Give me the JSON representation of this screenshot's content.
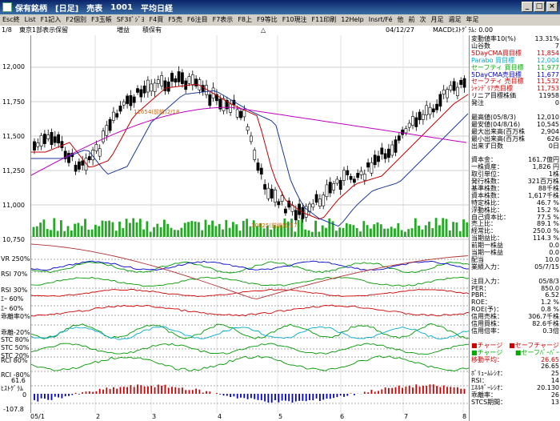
{
  "window": {
    "title_parts": [
      "保有銘柄",
      "[日足]",
      "売表",
      "1001",
      "平均日経"
    ]
  },
  "menu": [
    "Esc終",
    "List",
    "F1記入",
    "F2個別",
    "F3玉帳",
    "SF3ﾎﾟｼﾞﾖ",
    "F4買",
    "F5売",
    "F6注目",
    "F7表示",
    "F8上",
    "F9等比",
    "F10現注",
    "F11印刷",
    "12Help",
    "Insrt/Fé",
    "他",
    "前",
    "次",
    "月足",
    "週足",
    "年足"
  ],
  "info": {
    "page": "1/8",
    "market": "東京1部表示保留",
    "flag1": "増益",
    "flag2": "積保有",
    "marker": "△",
    "date": "04/12/27",
    "macd_label": "MACDﾋｽﾄｸﾞﾗﾑ: 0.00"
  },
  "price_axis": [
    "12,000",
    "11,750",
    "11,500",
    "11,250",
    "11,000",
    "10,750"
  ],
  "indicator_labels": [
    "VR 250%",
    "RSI 70%",
    "RSI 30%",
    "ｴｰ 60%",
    "ｴｰ 60%",
    "乖離率0%",
    "乖離-20%",
    "STC 80%",
    "STC 50%",
    "STC 20%",
    "RCI 80%",
    "RCI -80%",
    "ﾋｽﾄｸﾞﾗﾑ"
  ],
  "hist_axis": [
    "61.6",
    "0",
    "-107.8"
  ],
  "date_axis": [
    "05/1",
    "2",
    "3",
    "4",
    "5",
    "6",
    "7",
    "8"
  ],
  "annotations": {
    "cross1": "11654(前線)2/18",
    "cross2": "10825(前線)5/17"
  },
  "panel": [
    {
      "k": "変動値率10(%)",
      "v": "13.31%",
      "c": "#000000"
    },
    {
      "k": "山谷数",
      "v": "7",
      "c": "#000000"
    },
    {
      "k": "5DayCMA買目標",
      "v": "11,854",
      "c": "#cc0000"
    },
    {
      "k": "Parabo 買目標",
      "v": "12,004",
      "c": "#00aacc"
    },
    {
      "k": "セーフティ 買目標",
      "v": "11,977",
      "c": "#00aa00"
    },
    {
      "k": "5DayCMA売目標",
      "v": "11,677",
      "c": "#0000cc"
    },
    {
      "k": "セーフティ 売目標",
      "v": "11,532",
      "c": "#cc0000"
    },
    {
      "k": "ｼｬﾝﾃﾞﾘｱ売目標",
      "v": "11,753",
      "c": "#cc0000"
    },
    {
      "k": "リニア目標株価",
      "v": "11958",
      "c": "#000000"
    },
    {
      "k": "発注",
      "v": "0",
      "c": "#000000"
    },
    {
      "k": "",
      "v": "",
      "c": "#000000"
    },
    {
      "k": "最高値(05/8/3)",
      "v": "12,010",
      "c": "#000000"
    },
    {
      "k": "最安値(04/8/16)",
      "v": "10,545",
      "c": "#000000"
    },
    {
      "k": "最大出来高(百万株",
      "v": "2,904",
      "c": "#000000"
    },
    {
      "k": "最小出来高(百万株",
      "v": "626",
      "c": "#000000"
    },
    {
      "k": "出来ず日数",
      "v": "0日",
      "c": "#000000"
    },
    {
      "k": "",
      "v": "",
      "c": "#000000"
    },
    {
      "k": "資本金：",
      "v": "161.7億円",
      "c": "#000000"
    },
    {
      "k": "一株資産：",
      "v": "1,826 円",
      "c": "#000000"
    },
    {
      "k": "取引単位：",
      "v": "1株",
      "c": "#000000"
    },
    {
      "k": "発行株数：",
      "v": "321百万株",
      "c": "#000000"
    },
    {
      "k": "基準株数：",
      "v": "88千株",
      "c": "#000000"
    },
    {
      "k": "資本株数：",
      "v": "1,617千株",
      "c": "#000000"
    },
    {
      "k": "特定株比：",
      "v": "46.7 %",
      "c": "#000000"
    },
    {
      "k": "浮動株比：",
      "v": "15.2 %",
      "c": "#000000"
    },
    {
      "k": "自己資本比：",
      "v": "77.5 %",
      "c": "#000000"
    },
    {
      "k": "売上比：",
      "v": "89.1 %",
      "c": "#000000"
    },
    {
      "k": "経常比：",
      "v": "250.0 %",
      "c": "#000000"
    },
    {
      "k": "当期益比：",
      "v": "114.3 %",
      "c": "#000000"
    },
    {
      "k": "前期一株益",
      "v": "0.0",
      "c": "#000000"
    },
    {
      "k": "当期一株益",
      "v": "0.0",
      "c": "#000000"
    },
    {
      "k": "配当",
      "v": "10.0",
      "c": "#000000"
    },
    {
      "k": "業績入力：",
      "v": "05/7/15",
      "c": "#000000"
    },
    {
      "k": "",
      "v": "",
      "c": "#000000"
    },
    {
      "k": "注目入力：",
      "v": "05/8/3",
      "c": "#000000"
    },
    {
      "k": "PER：",
      "v": "850.0",
      "c": "#000000"
    },
    {
      "k": "PBR：",
      "v": "6.52",
      "c": "#000000"
    },
    {
      "k": "ROE：",
      "v": "1.2 %",
      "c": "#000000"
    },
    {
      "k": "ROE(予)：",
      "v": "0.8 %",
      "c": "#000000"
    },
    {
      "k": "信用売株：",
      "v": "306.7千株",
      "c": "#000000"
    },
    {
      "k": "信用買株：",
      "v": "82.6千株",
      "c": "#000000"
    },
    {
      "k": "信用倍率：",
      "v": "0.3倍",
      "c": "#000000"
    },
    {
      "k": "",
      "v": "",
      "c": "#000000"
    },
    {
      "k": "■チャージ",
      "v": "■セーフチャージ",
      "c": "#cc0000"
    },
    {
      "k": "■チャージ",
      "v": "■セーフﾊﾞｰﾊﾞｰ",
      "c": "#00aa00"
    },
    {
      "k": "移動平均：",
      "v": "26.65",
      "c": "#cc0000"
    },
    {
      "k": "",
      "v": "26.65",
      "c": "#000000"
    },
    {
      "k": "ﾎﾞﾘｭｰﾑﾚｼｵ：",
      "v": "25",
      "c": "#000000"
    },
    {
      "k": "RSI：",
      "v": "14",
      "c": "#000000"
    },
    {
      "k": "ｴﾈﾙｷﾞｰﾚｼｵ：",
      "v": "20.130",
      "c": "#000000"
    },
    {
      "k": "乖離率：",
      "v": "26",
      "c": "#000000"
    },
    {
      "k": "STCS期間：",
      "v": "13",
      "c": "#000000"
    }
  ]
}
